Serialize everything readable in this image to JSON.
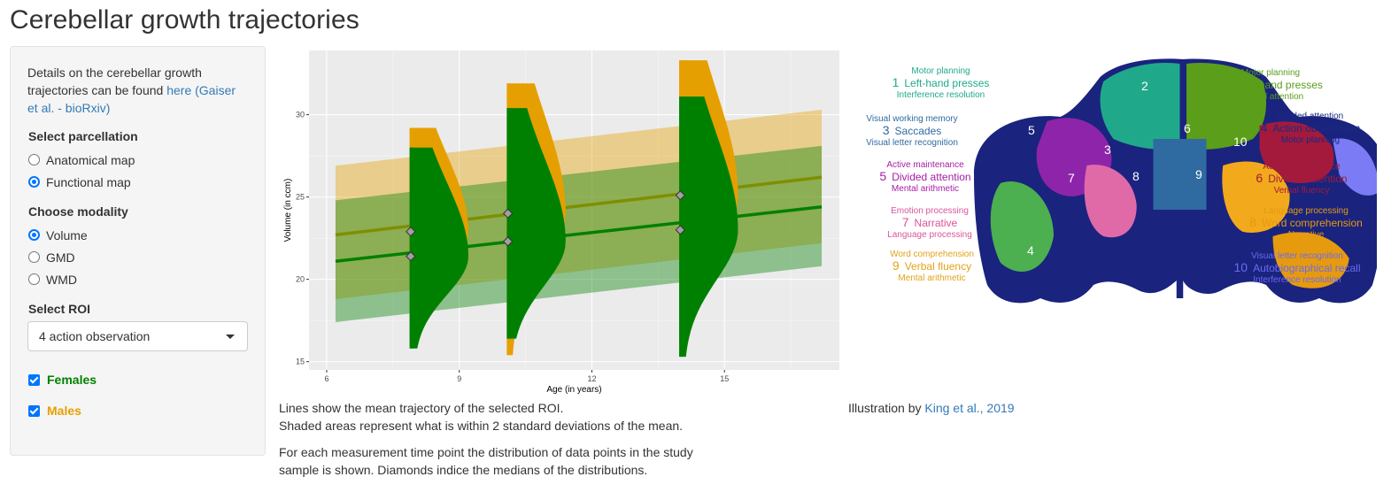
{
  "page": {
    "title": "Cerebellar growth trajectories"
  },
  "sidebar": {
    "intro_text": "Details on the cerebellar growth trajectories can be found ",
    "intro_link": "here (Gaiser et al. - bioRxiv)",
    "parcellation": {
      "label": "Select parcellation",
      "options": [
        {
          "label": "Anatomical map",
          "selected": false
        },
        {
          "label": "Functional map",
          "selected": true
        }
      ]
    },
    "modality": {
      "label": "Choose modality",
      "options": [
        {
          "label": "Volume",
          "selected": true
        },
        {
          "label": "GMD",
          "selected": false
        },
        {
          "label": "WMD",
          "selected": false
        }
      ]
    },
    "roi": {
      "label": "Select ROI",
      "value": "4 action observation"
    },
    "sexes": [
      {
        "label": "Females",
        "checked": true,
        "color": "#008000"
      },
      {
        "label": "Males",
        "checked": true,
        "color": "#e69f00"
      }
    ]
  },
  "chart_caption": {
    "line1": "Lines show the mean trajectory of the selected ROI.",
    "line2": "Shaded areas represent what is within 2 standard deviations of the mean.",
    "line3": "For each measurement time point the distribution of data points in the study",
    "line4": "sample is shown. Diamonds indice the medians of the distributions."
  },
  "chart_data": {
    "type": "line",
    "xlabel": "Age (in years)",
    "ylabel": "Volume (in ccm)",
    "xlim": [
      5.6,
      17.6
    ],
    "ylim": [
      14.5,
      33.9
    ],
    "xticks": [
      6,
      9,
      12,
      15
    ],
    "yticks": [
      15,
      20,
      25,
      30
    ],
    "grid": true,
    "colors": {
      "females": "#008000",
      "males": "#e69f00",
      "panel": "#ebebeb",
      "males_line": "#7f8f00"
    },
    "series": [
      {
        "name": "Males",
        "mean_line": {
          "x": [
            6.2,
            17.2
          ],
          "y": [
            22.7,
            26.2
          ]
        },
        "band": {
          "upper": [
            26.9,
            30.3
          ],
          "lower": [
            18.8,
            22.2
          ]
        },
        "distributions": [
          {
            "x": 7.9,
            "min": 16.5,
            "max": 29.2,
            "median": 22.9
          },
          {
            "x": 10.1,
            "min": 15.4,
            "max": 31.9,
            "median": 24.0
          },
          {
            "x": 14.0,
            "min": 16.1,
            "max": 33.3,
            "median": 25.1
          }
        ]
      },
      {
        "name": "Females",
        "mean_line": {
          "x": [
            6.2,
            17.2
          ],
          "y": [
            21.1,
            24.4
          ]
        },
        "band": {
          "upper": [
            24.8,
            28.1
          ],
          "lower": [
            17.4,
            20.8
          ]
        },
        "distributions": [
          {
            "x": 7.9,
            "min": 15.8,
            "max": 28.0,
            "median": 21.4
          },
          {
            "x": 10.1,
            "min": 16.4,
            "max": 30.4,
            "median": 22.3
          },
          {
            "x": 14.0,
            "min": 15.3,
            "max": 31.1,
            "median": 23.0
          }
        ]
      }
    ]
  },
  "illustration": {
    "credit_text": "Illustration by ",
    "credit_link": "King et al., 2019",
    "region_numbers": [
      "1",
      "2",
      "3",
      "4",
      "5",
      "6",
      "7",
      "8",
      "9",
      "10"
    ],
    "labels": [
      {
        "num": "1",
        "top": "Motor planning",
        "main": "Left-hand presses",
        "bottom": "Interference resolution",
        "color": "#1fa98a"
      },
      {
        "num": "2",
        "top": "Motor planning",
        "main": "Right-hand presses",
        "bottom": "Divided attention",
        "color": "#5a9e1a"
      },
      {
        "num": "3",
        "top": "Visual working memory",
        "main": "Saccades",
        "bottom": "Visual letter recognition",
        "color": "#2f6aa0"
      },
      {
        "num": "4",
        "top": "Divided attention",
        "main": "Action observation",
        "bottom": "Motor planning",
        "color": "#1a2a80"
      },
      {
        "num": "5",
        "top": "Active maintenance",
        "main": "Divided attention",
        "bottom": "Mental arithmetic",
        "color": "#a61ca6"
      },
      {
        "num": "6",
        "top": "Active maintenance",
        "main": "Divided attention",
        "bottom": "Verbal fluency",
        "color": "#a31a3c"
      },
      {
        "num": "7",
        "top": "Emotion processing",
        "main": "Narrative",
        "bottom": "Language processing",
        "color": "#d9559b"
      },
      {
        "num": "8",
        "top": "Language processing",
        "main": "Word comprehension",
        "bottom": "Narrative",
        "color": "#e69a0e"
      },
      {
        "num": "9",
        "top": "Word comprehension",
        "main": "Verbal fluency",
        "bottom": "Mental arithmetic",
        "color": "#e0a31a"
      },
      {
        "num": "10",
        "top": "Visual letter recognition",
        "main": "Autobiographical recall",
        "bottom": "Interference resolution",
        "color": "#6b6bf0"
      }
    ]
  }
}
